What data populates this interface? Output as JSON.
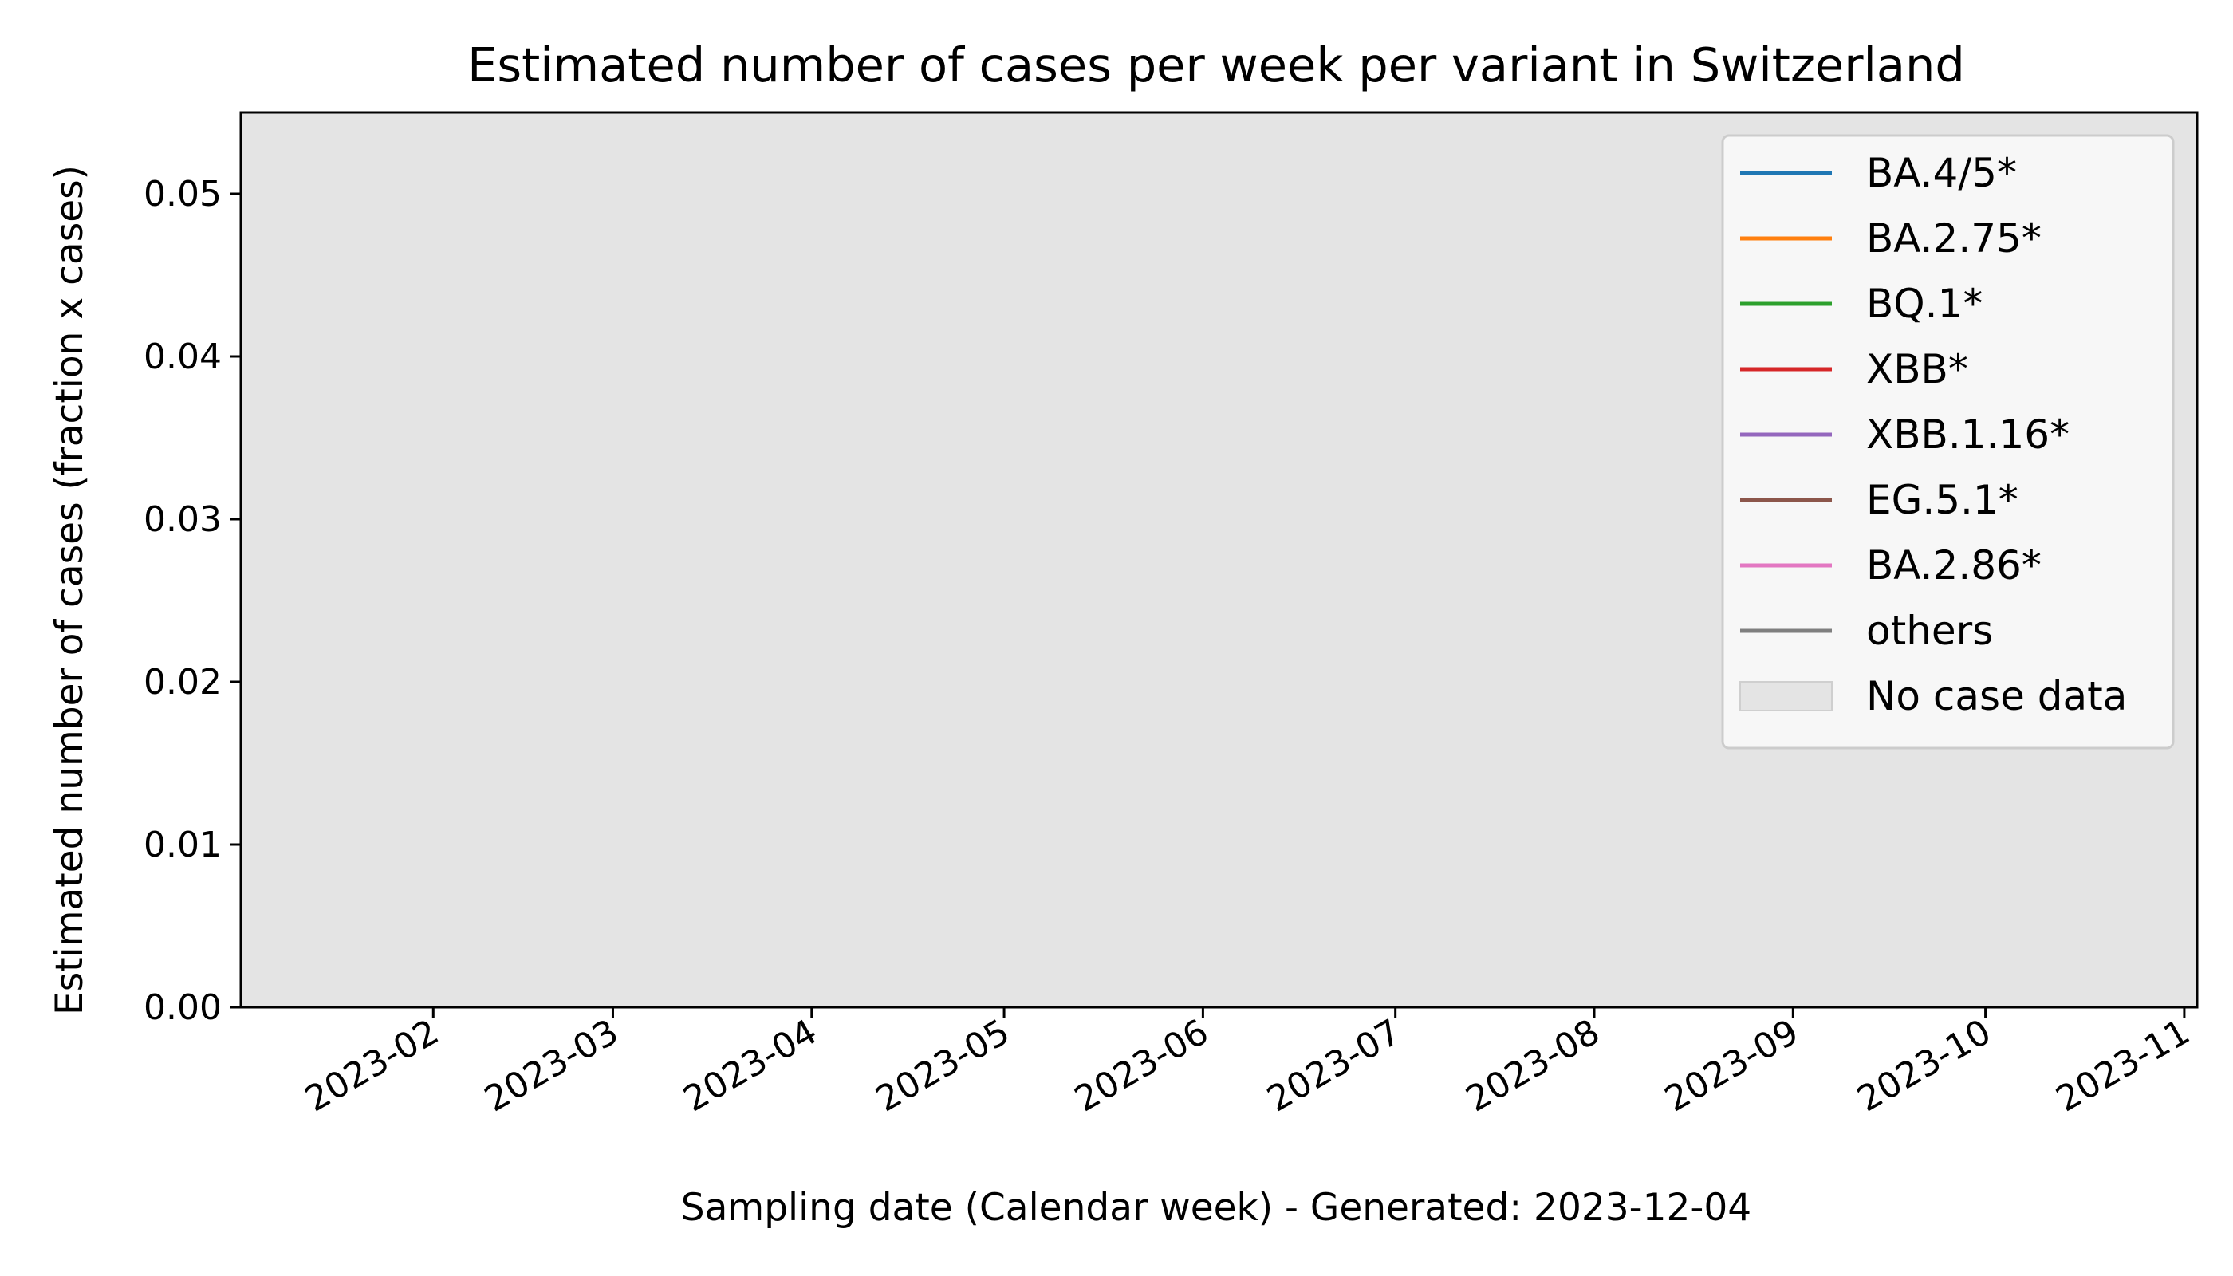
{
  "chart_data": {
    "type": "line",
    "title": "Estimated number of cases per week per variant in Switzerland",
    "xlabel": "Sampling date (Calendar week) - Generated: 2023-12-04",
    "ylabel": "Estimated number of cases (fraction x cases)",
    "xlim": [
      "2023-01-02",
      "2023-11-03"
    ],
    "ylim": [
      0.0,
      0.055
    ],
    "x_ticks": [
      "2023-02",
      "2023-03",
      "2023-04",
      "2023-05",
      "2023-06",
      "2023-07",
      "2023-08",
      "2023-09",
      "2023-10",
      "2023-11"
    ],
    "y_ticks": [
      "0.00",
      "0.01",
      "0.02",
      "0.03",
      "0.04",
      "0.05"
    ],
    "grid": false,
    "legend_position": "top-right",
    "series": [
      {
        "name": "BA.4/5*",
        "color": "#1f77b4",
        "values": []
      },
      {
        "name": "BA.2.75*",
        "color": "#ff7f0e",
        "values": []
      },
      {
        "name": "BQ.1*",
        "color": "#2ca02c",
        "values": []
      },
      {
        "name": "XBB*",
        "color": "#d62728",
        "values": []
      },
      {
        "name": "XBB.1.16*",
        "color": "#9467bd",
        "values": []
      },
      {
        "name": "EG.5.1*",
        "color": "#8c564b",
        "values": []
      },
      {
        "name": "BA.2.86*",
        "color": "#e377c2",
        "values": []
      },
      {
        "name": "others",
        "color": "#7f7f7f",
        "values": []
      }
    ],
    "shaded_regions": [
      {
        "label": "No case data",
        "x_start": "2023-01-02",
        "x_end": "2023-11-03",
        "color": "#e4e4e4"
      }
    ]
  }
}
